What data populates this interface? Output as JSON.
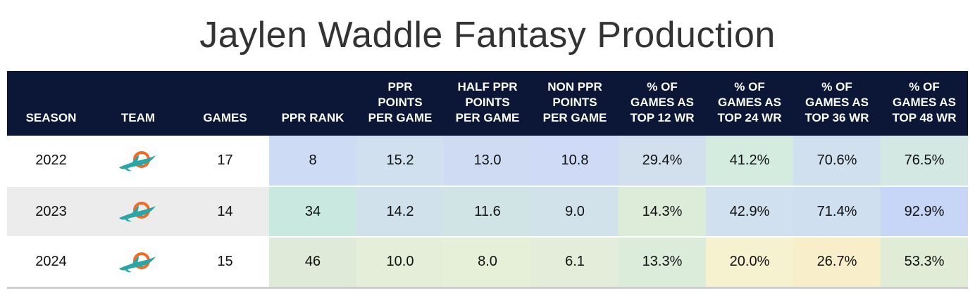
{
  "title": "Jaylen Waddle Fantasy Production",
  "headers": [
    [
      "SEASON"
    ],
    [
      "TEAM"
    ],
    [
      "GAMES"
    ],
    [
      "PPR RANK"
    ],
    [
      "PPR",
      "POINTS",
      "PER GAME"
    ],
    [
      "HALF PPR",
      "POINTS",
      "PER GAME"
    ],
    [
      "NON PPR",
      "POINTS",
      "PER GAME"
    ],
    [
      "% OF",
      "GAMES AS",
      "TOP 12 WR"
    ],
    [
      "% OF",
      "GAMES AS",
      "TOP 24 WR"
    ],
    [
      "% OF",
      "GAMES AS",
      "TOP 36 WR"
    ],
    [
      "% OF",
      "GAMES AS",
      "TOP 48 WR"
    ]
  ],
  "rows": [
    {
      "season": "2022",
      "team_icon": "dolphins-logo-icon",
      "games": "17",
      "ppr_rank": "8",
      "ppr_ppg": "15.2",
      "half_ppg": "13.0",
      "non_ppg": "10.8",
      "top12": "29.4%",
      "top24": "41.2%",
      "top36": "70.6%",
      "top48": "76.5%"
    },
    {
      "season": "2023",
      "team_icon": "dolphins-logo-icon",
      "games": "14",
      "ppr_rank": "34",
      "ppr_ppg": "14.2",
      "half_ppg": "11.6",
      "non_ppg": "9.0",
      "top12": "14.3%",
      "top24": "42.9%",
      "top36": "71.4%",
      "top48": "92.9%"
    },
    {
      "season": "2024",
      "team_icon": "dolphins-logo-icon",
      "games": "15",
      "ppr_rank": "46",
      "ppr_ppg": "10.0",
      "half_ppg": "8.0",
      "non_ppg": "6.1",
      "top12": "13.3%",
      "top24": "20.0%",
      "top36": "26.7%",
      "top48": "53.3%"
    }
  ],
  "cell_colors": [
    [
      "#cddcf4",
      "#d0e0ee",
      "#cfdbf3",
      "#cfdaf6",
      "#d2e0ee",
      "#d3ecdf",
      "#d1e0ee",
      "#d3e8e3"
    ],
    [
      "#c8e8e0",
      "#d0e1ec",
      "#d0e4e6",
      "#d1e2ea",
      "#dcecd8",
      "#d1e0ef",
      "#d0dff0",
      "#c7d6f6"
    ],
    [
      "#dfebd8",
      "#e5eed8",
      "#e6efd8",
      "#e4ecda",
      "#dcecdb",
      "#f6f2cf",
      "#f8efca",
      "#e1ecd6"
    ]
  ],
  "team_colors": {
    "aqua": "#2ba6a6",
    "orange": "#f26a24",
    "navy": "#0c1636"
  }
}
